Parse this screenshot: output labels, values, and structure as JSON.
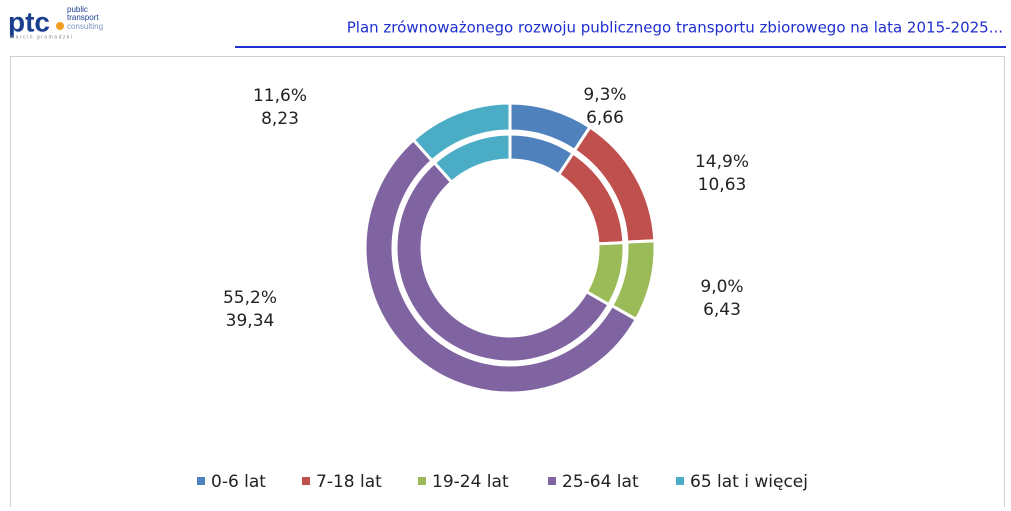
{
  "header": {
    "logo": {
      "mark": "ptc",
      "line1": "public",
      "line2": "transport",
      "line3": "consulting",
      "author": "marcin gromadzki"
    },
    "title": "Plan zrównoważonego rozwoju publicznego transportu zbiorowego na lata 2015-2025..."
  },
  "chart_data": {
    "type": "doughnut",
    "categories": [
      "0-6 lat",
      "7-18 lat",
      "19-24 lat",
      "25-64 lat",
      "65 lat i więcej"
    ],
    "colors": [
      "#4f81bd",
      "#c0504d",
      "#9bbb59",
      "#8064a2",
      "#4bacc6"
    ],
    "series": [
      {
        "values": [
          9.3,
          14.9,
          9.0,
          55.2,
          11.6
        ],
        "value_labels": [
          "9,3%",
          "14,9%",
          "9,0%",
          "55,2%",
          "11,6%"
        ]
      },
      {
        "values": [
          6.66,
          10.63,
          6.43,
          39.34,
          8.23
        ],
        "value_labels": [
          "6,66",
          "10,63",
          "6,43",
          "39,34",
          "8,23"
        ]
      }
    ],
    "legend": "bottom"
  }
}
